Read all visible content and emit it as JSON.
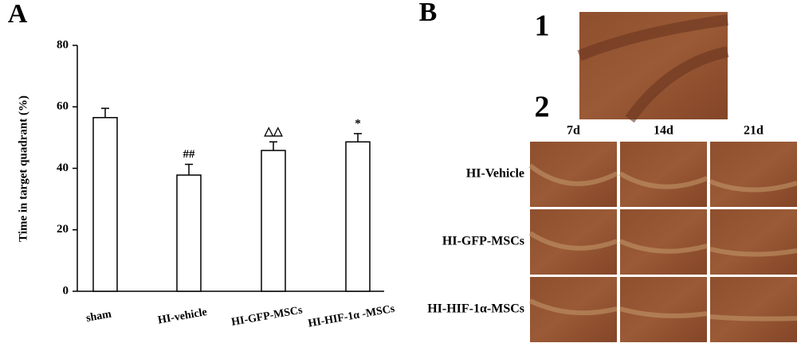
{
  "chart_data": {
    "type": "bar",
    "panel": "A",
    "y_label": "Time in target quadrant (%)",
    "categories": [
      "sham",
      "HI-vehicle",
      "HI-GFP-MSCs",
      "HI-HIF-1α -MSCs"
    ],
    "values": [
      56.5,
      37.8,
      45.8,
      48.6
    ],
    "errors": [
      3.0,
      3.5,
      2.8,
      2.7
    ],
    "significance": [
      null,
      "##",
      "△△",
      "*"
    ],
    "color": "#ffffff",
    "ylim": [
      0,
      80
    ],
    "yticks": [
      0,
      20,
      40,
      60,
      80
    ],
    "grid": false
  },
  "micrographs": {
    "panel": "B",
    "sections": [
      "1",
      "2"
    ],
    "columns": [
      "7d",
      "14d",
      "21d"
    ],
    "rows": [
      "HI-Vehicle",
      "HI-GFP-MSCs",
      "HI-HIF-1α-MSCs"
    ]
  }
}
